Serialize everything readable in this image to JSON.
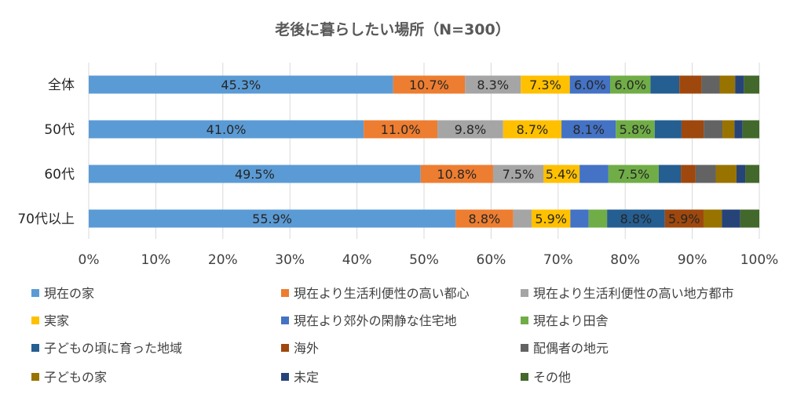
{
  "chart_data": {
    "type": "bar",
    "orientation": "horizontal",
    "stacked": "100%",
    "title": "老後に暮らしたい場所（N=300）",
    "categories": [
      "全体",
      "50代",
      "60代",
      "70代以上"
    ],
    "xlim": [
      0,
      100
    ],
    "x_ticks": [
      "0%",
      "10%",
      "20%",
      "30%",
      "40%",
      "50%",
      "60%",
      "70%",
      "80%",
      "90%",
      "100%"
    ],
    "grid": true,
    "legend_position": "bottom",
    "series": [
      {
        "name": "現在の家",
        "color": "#5b9bd5",
        "values": [
          45.3,
          41.0,
          49.5,
          55.9
        ],
        "labels": [
          "45.3%",
          "41.0%",
          "49.5%",
          "55.9%"
        ]
      },
      {
        "name": "現在より生活利便性の高い都心",
        "color": "#ed7d31",
        "values": [
          10.7,
          11.0,
          10.8,
          8.8
        ],
        "labels": [
          "10.7%",
          "11.0%",
          "10.8%",
          "8.8%"
        ]
      },
      {
        "name": "現在より生活利便性の高い地方都市",
        "color": "#a5a5a5",
        "values": [
          8.3,
          9.8,
          7.5,
          2.8
        ],
        "labels": [
          "8.3%",
          "9.8%",
          "7.5%",
          ""
        ]
      },
      {
        "name": "実家",
        "color": "#ffc000",
        "values": [
          7.3,
          8.7,
          5.4,
          5.9
        ],
        "labels": [
          "7.3%",
          "8.7%",
          "5.4%",
          "5.9%"
        ]
      },
      {
        "name": "現在より郊外の閑静な住宅地",
        "color": "#4472c4",
        "values": [
          6.0,
          8.1,
          4.3,
          2.8
        ],
        "labels": [
          "6.0%",
          "8.1%",
          "",
          ""
        ]
      },
      {
        "name": "現在より田舎",
        "color": "#70ad47",
        "values": [
          6.0,
          5.8,
          7.5,
          2.8
        ],
        "labels": [
          "6.0%",
          "5.8%",
          "7.5%",
          ""
        ]
      },
      {
        "name": "子どもの頃に育った地域",
        "color": "#255e91",
        "values": [
          4.3,
          4.0,
          3.3,
          8.8
        ],
        "labels": [
          "",
          "",
          "",
          "8.8%"
        ]
      },
      {
        "name": "海外",
        "color": "#9e480e",
        "values": [
          3.3,
          3.3,
          2.2,
          5.9
        ],
        "labels": [
          "",
          "",
          "",
          "5.9%"
        ]
      },
      {
        "name": "配偶者の地元",
        "color": "#636363",
        "values": [
          2.7,
          2.8,
          3.0,
          0.0
        ],
        "labels": [
          "",
          "",
          "",
          ""
        ]
      },
      {
        "name": "子どもの家",
        "color": "#997300",
        "values": [
          2.3,
          1.8,
          3.1,
          2.8
        ],
        "labels": [
          "",
          "",
          "",
          ""
        ]
      },
      {
        "name": "未定",
        "color": "#264478",
        "values": [
          1.3,
          1.2,
          1.3,
          2.8
        ],
        "labels": [
          "",
          "",
          "",
          ""
        ]
      },
      {
        "name": "その他",
        "color": "#43682b",
        "values": [
          2.3,
          2.5,
          2.1,
          2.9
        ],
        "labels": [
          "",
          "",
          "",
          ""
        ]
      }
    ]
  }
}
